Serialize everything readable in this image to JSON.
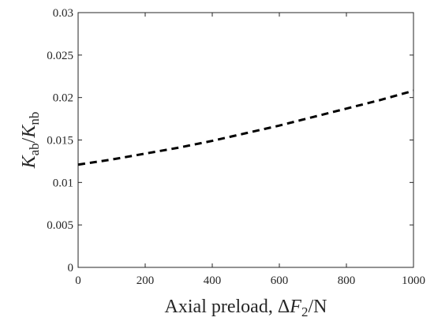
{
  "chart_data": {
    "type": "line",
    "title": "",
    "xlabel": "Axial preload, ΔF2/N",
    "xlabel_parts": {
      "prefix": "Axial preload, Δ",
      "symbol": "F",
      "subscript": "2",
      "suffix": "/N"
    },
    "ylabel": "Kab/Knb",
    "ylabel_parts": {
      "num": "K",
      "num_sub": "ab",
      "sep": "/",
      "den": "K",
      "den_sub": "nb"
    },
    "xlim": [
      0,
      1000
    ],
    "ylim": [
      0,
      0.03
    ],
    "xticks": [
      0,
      200,
      400,
      600,
      800,
      1000
    ],
    "xtick_labels": [
      "0",
      "200",
      "400",
      "600",
      "800",
      "1000"
    ],
    "yticks": [
      0,
      0.005,
      0.01,
      0.015,
      0.02,
      0.025,
      0.03
    ],
    "ytick_labels": [
      "0",
      "0.005",
      "0.01",
      "0.015",
      "0.02",
      "0.025",
      "0.03"
    ],
    "grid": false,
    "series": [
      {
        "style": "dashed",
        "color": "#000000",
        "x": [
          0,
          100,
          200,
          300,
          400,
          500,
          600,
          700,
          800,
          900,
          1000
        ],
        "y": [
          0.0121,
          0.0127,
          0.0134,
          0.0141,
          0.0149,
          0.0158,
          0.0167,
          0.0177,
          0.0187,
          0.0197,
          0.0208
        ]
      }
    ]
  }
}
